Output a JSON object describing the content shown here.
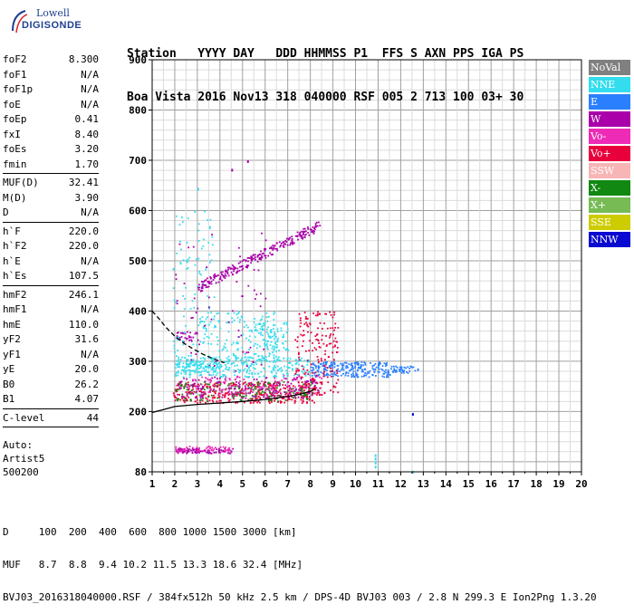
{
  "logo": {
    "line1": "Lowell",
    "line2": "DIGISONDE"
  },
  "header": {
    "line1": "Station   YYYY DAY   DDD HHMMSS P1  FFS S AXN PPS IGA PS",
    "line2": "Boa Vista 2016 Nov13 318 040000 RSF 005 2 713 100 03+ 30"
  },
  "params": [
    {
      "name": "foF2",
      "value": "8.300"
    },
    {
      "name": "foF1",
      "value": "N/A"
    },
    {
      "name": "foF1p",
      "value": "N/A"
    },
    {
      "name": "foE",
      "value": "N/A"
    },
    {
      "name": "foEp",
      "value": "0.41"
    },
    {
      "name": "fxI",
      "value": "8.40"
    },
    {
      "name": "foEs",
      "value": "3.20"
    },
    {
      "name": "fmin",
      "value": "1.70",
      "sep": true
    },
    {
      "name": "MUF(D)",
      "value": "32.41"
    },
    {
      "name": "M(D)",
      "value": "3.90"
    },
    {
      "name": "D",
      "value": "N/A",
      "sep": true
    },
    {
      "name": "h`F",
      "value": "220.0"
    },
    {
      "name": "h`F2",
      "value": "220.0"
    },
    {
      "name": "h`E",
      "value": "N/A"
    },
    {
      "name": "h`Es",
      "value": "107.5",
      "sep": true
    },
    {
      "name": "hmF2",
      "value": "246.1"
    },
    {
      "name": "hmF1",
      "value": "N/A"
    },
    {
      "name": "hmE",
      "value": "110.0"
    },
    {
      "name": "yF2",
      "value": "31.6"
    },
    {
      "name": "yF1",
      "value": "N/A"
    },
    {
      "name": "yE",
      "value": "20.0"
    },
    {
      "name": "B0",
      "value": "26.2"
    },
    {
      "name": "B1",
      "value": "4.07",
      "sep": true
    },
    {
      "name": "C-level",
      "value": "44",
      "sep": true
    }
  ],
  "auto": {
    "line1": "Auto:",
    "line2": "Artist5",
    "line3": "500200"
  },
  "footer": {
    "line1": "D     100  200  400  600  800 1000 1500 3000 [km]",
    "line2": "MUF   8.7  8.8  9.4 10.2 11.5 13.3 18.6 32.4 [MHz]",
    "line3": "BVJ03_2016318040000.RSF / 384fx512h 50 kHz 2.5 km / DPS-4D BVJ03 003 / 2.8 N 299.3 E Ion2Png 1.3.20"
  },
  "legend": [
    {
      "label": "NoVal",
      "bg": "#808080",
      "fg": "#ffffff"
    },
    {
      "label": "NNE",
      "bg": "#33ddee",
      "fg": "#ffffff"
    },
    {
      "label": "E",
      "bg": "#2a7fff",
      "fg": "#ffffff"
    },
    {
      "label": "W",
      "bg": "#aa00aa",
      "fg": "#ffffff"
    },
    {
      "label": "Vo-",
      "bg": "#ee2bb6",
      "fg": "#ffffff"
    },
    {
      "label": "Vo+",
      "bg": "#e8003c",
      "fg": "#ffffff"
    },
    {
      "label": "SSW",
      "bg": "#f8b5b5",
      "fg": "#ffffff"
    },
    {
      "label": "X-",
      "bg": "#118811",
      "fg": "#ffffff"
    },
    {
      "label": "X+",
      "bg": "#77bb55",
      "fg": "#ffffff"
    },
    {
      "label": "SSE",
      "bg": "#cccc00",
      "fg": "#ffffff"
    },
    {
      "label": "NNW",
      "bg": "#0a0ad0",
      "fg": "#ffffff"
    }
  ],
  "chart_data": {
    "type": "scatter",
    "title": "",
    "xlabel": "",
    "ylabel": "",
    "xlim": [
      1,
      20
    ],
    "ylim": [
      80,
      900
    ],
    "x_ticks": [
      1,
      2,
      3,
      4,
      5,
      6,
      7,
      8,
      9,
      10,
      11,
      12,
      13,
      14,
      15,
      16,
      17,
      18,
      19,
      20
    ],
    "y_ticks": [
      80,
      200,
      300,
      400,
      500,
      600,
      700,
      800,
      900
    ],
    "grid": true,
    "legend_position": "right",
    "trace_height_profile": {
      "name": "",
      "x": [
        1.0,
        1.6,
        2.0,
        2.5,
        3.0,
        4.0,
        5.0,
        6.0,
        7.0,
        7.5,
        8.0,
        8.2
      ],
      "y": [
        198,
        205,
        210,
        212,
        214,
        217,
        220,
        224,
        230,
        234,
        240,
        245
      ]
    },
    "trace_dashed": {
      "name": "",
      "x": [
        1.0,
        1.3,
        1.6,
        2.0,
        2.4,
        2.8,
        3.2,
        3.6,
        4.0,
        4.2
      ],
      "y": [
        400,
        385,
        368,
        350,
        336,
        325,
        315,
        307,
        300,
        297
      ]
    },
    "echo_regions": [
      {
        "series": "Vo+",
        "x": [
          1.9,
          8.3
        ],
        "y": [
          218,
          260
        ],
        "density": 380
      },
      {
        "series": "X-",
        "x": [
          2.0,
          8.2
        ],
        "y": [
          222,
          262
        ],
        "density": 160
      },
      {
        "series": "W",
        "x": [
          2.0,
          8.4
        ],
        "y": [
          228,
          270
        ],
        "density": 160
      },
      {
        "series": "Vo-",
        "x": [
          2.5,
          8.5
        ],
        "y": [
          235,
          275
        ],
        "density": 120
      },
      {
        "series": "NNE",
        "x": [
          2.0,
          8.0
        ],
        "y": [
          270,
          310
        ],
        "density": 300
      },
      {
        "series": "NNE",
        "x": [
          3.0,
          6.5
        ],
        "y": [
          300,
          400
        ],
        "density": 160
      },
      {
        "series": "NNE",
        "x": [
          5.5,
          7.0
        ],
        "y": [
          320,
          380
        ],
        "density": 70
      },
      {
        "series": "E",
        "x": [
          8.0,
          11.5
        ],
        "y": [
          270,
          300
        ],
        "density": 230
      },
      {
        "series": "E",
        "x": [
          11.5,
          12.8
        ],
        "y": [
          278,
          292
        ],
        "density": 40
      },
      {
        "series": "W",
        "x": [
          2.0,
          3.0
        ],
        "y": [
          340,
          360
        ],
        "density": 30
      },
      {
        "series": "Vo+",
        "x": [
          7.3,
          9.2
        ],
        "y": [
          230,
          400
        ],
        "density": 180
      },
      {
        "series": "W",
        "x": [
          2.0,
          4.6
        ],
        "y": [
          118,
          128
        ],
        "density": 90
      },
      {
        "series": "Vo-",
        "x": [
          2.0,
          4.4
        ],
        "y": [
          122,
          132
        ],
        "density": 50
      },
      {
        "series": "NNE",
        "x": [
          1.9,
          3.8
        ],
        "y": [
          270,
          600
        ],
        "density": 110
      },
      {
        "series": "W",
        "x": [
          2.0,
          6.0
        ],
        "y": [
          280,
          560
        ],
        "density": 60
      }
    ],
    "echo_bands": [
      {
        "series": "W",
        "x": [
          3.0,
          8.4
        ],
        "y": [
          448,
          572
        ],
        "thickness": 10,
        "density": 260
      },
      {
        "series": "NNE",
        "x": [
          2.0,
          4.0
        ],
        "y": [
          290,
          290
        ],
        "thickness": 12,
        "density": 60
      }
    ],
    "echo_points": [
      {
        "series": "NNE",
        "x": 10.85,
        "y": 92
      },
      {
        "series": "NNE",
        "x": 10.85,
        "y": 100
      },
      {
        "series": "NNE",
        "x": 10.85,
        "y": 108
      },
      {
        "series": "NNE",
        "x": 10.85,
        "y": 115
      },
      {
        "series": "NNW",
        "x": 12.5,
        "y": 197
      },
      {
        "series": "W",
        "x": 4.5,
        "y": 683
      },
      {
        "series": "W",
        "x": 5.2,
        "y": 700
      },
      {
        "series": "NNE",
        "x": 3.0,
        "y": 645
      },
      {
        "series": "NNE",
        "x": 12.5,
        "y": 82
      }
    ]
  }
}
